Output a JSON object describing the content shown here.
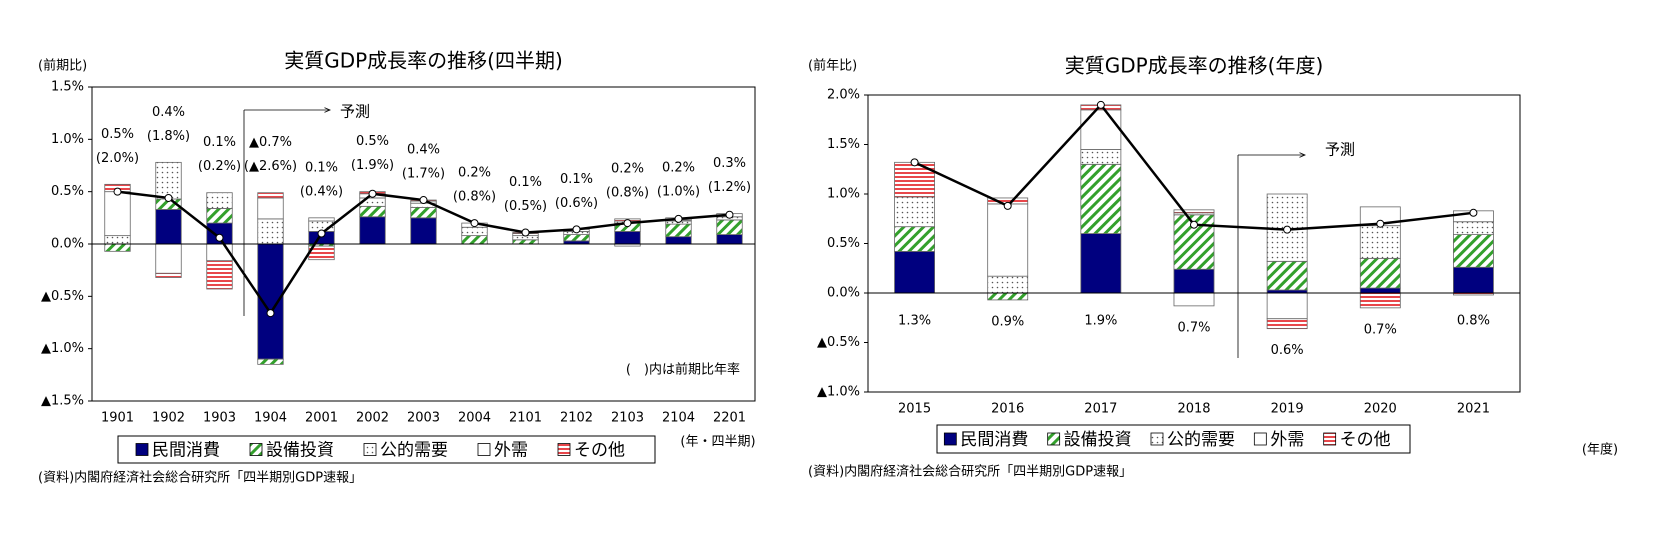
{
  "chart_data": [
    {
      "type": "bar",
      "title": "実質GDP成長率の推移(四半期)",
      "y_unit_label": "(前期比)",
      "x_unit_label": "(年・四半期)",
      "source": "(資料)内閣府経済社会総合研究所「四半期別GDP速報」",
      "note": "(　)内は前期比年率",
      "forecast_label": "予測",
      "categories": [
        "1901",
        "1902",
        "1903",
        "1904",
        "2001",
        "2002",
        "2003",
        "2004",
        "2101",
        "2102",
        "2103",
        "2104",
        "2201"
      ],
      "ylim": [
        -1.5,
        1.5
      ],
      "yticks": [
        {
          "value": -1.5,
          "label": "▲1.5%"
        },
        {
          "value": -1.0,
          "label": "▲1.0%"
        },
        {
          "value": -0.5,
          "label": "▲0.5%"
        },
        {
          "value": 0.0,
          "label": "0.0%"
        },
        {
          "value": 0.5,
          "label": "0.5%"
        },
        {
          "value": 1.0,
          "label": "1.0%"
        },
        {
          "value": 1.5,
          "label": "1.5%"
        }
      ],
      "series": [
        {
          "name": "民間消費",
          "color": "#00007f",
          "pattern": "solid",
          "values": [
            0.0,
            0.33,
            0.2,
            -1.1,
            0.12,
            0.26,
            0.25,
            0.0,
            0.0,
            0.03,
            0.12,
            0.07,
            0.09
          ]
        },
        {
          "name": "設備投資",
          "color": "#33a02c",
          "pattern": "hatch",
          "values": [
            -0.07,
            0.1,
            0.14,
            -0.05,
            -0.02,
            0.1,
            0.1,
            0.08,
            0.04,
            0.06,
            0.08,
            0.12,
            0.14
          ]
        },
        {
          "name": "公的需要",
          "color": "#555555",
          "pattern": "dots",
          "values": [
            0.08,
            0.35,
            0.15,
            0.24,
            0.1,
            0.08,
            0.04,
            0.08,
            0.04,
            0.03,
            0.02,
            0.03,
            0.03
          ]
        },
        {
          "name": "外需",
          "color": "#ffffff",
          "pattern": "none",
          "values": [
            0.42,
            -0.28,
            -0.16,
            0.2,
            0.03,
            0.04,
            0.02,
            0.04,
            0.02,
            0.02,
            -0.02,
            0.01,
            0.03
          ]
        },
        {
          "name": "その他",
          "color": "#e8474b",
          "pattern": "stripes",
          "values": [
            0.07,
            -0.04,
            -0.27,
            0.05,
            -0.13,
            0.02,
            0.01,
            0.0,
            0.01,
            0.0,
            0.02,
            0.02,
            0.0
          ]
        }
      ],
      "line": {
        "color": "#000000",
        "values": [
          0.5,
          0.44,
          0.06,
          -0.66,
          0.1,
          0.48,
          0.42,
          0.2,
          0.11,
          0.14,
          0.2,
          0.24,
          0.28
        ],
        "value_labels": [
          "0.5%",
          "0.4%",
          "0.1%",
          "▲0.7%",
          "0.1%",
          "0.5%",
          "0.4%",
          "0.2%",
          "0.1%",
          "0.1%",
          "0.2%",
          "0.2%",
          "0.3%"
        ]
      },
      "annualized_labels": [
        "(2.0%)",
        "(1.8%)",
        "(0.2%)",
        "(▲2.6%)",
        "(0.4%)",
        "(1.9%)",
        "(1.7%)",
        "(0.8%)",
        "(0.5%)",
        "(0.6%)",
        "(0.8%)",
        "(1.0%)",
        "(1.2%)"
      ]
    },
    {
      "type": "bar",
      "title": "実質GDP成長率の推移(年度)",
      "y_unit_label": "(前年比)",
      "x_unit_label": "(年度)",
      "source": "(資料)内閣府経済社会総合研究所「四半期別GDP速報」",
      "forecast_label": "予測",
      "categories": [
        "2015",
        "2016",
        "2017",
        "2018",
        "2019",
        "2020",
        "2021"
      ],
      "ylim": [
        -1.0,
        2.0
      ],
      "yticks": [
        {
          "value": -1.0,
          "label": "▲1.0%"
        },
        {
          "value": -0.5,
          "label": "▲0.5%"
        },
        {
          "value": 0.0,
          "label": "0.0%"
        },
        {
          "value": 0.5,
          "label": "0.5%"
        },
        {
          "value": 1.0,
          "label": "1.0%"
        },
        {
          "value": 1.5,
          "label": "1.5%"
        },
        {
          "value": 2.0,
          "label": "2.0%"
        }
      ],
      "series": [
        {
          "name": "民間消費",
          "color": "#00007f",
          "pattern": "solid",
          "values": [
            0.42,
            0.0,
            0.6,
            0.24,
            0.03,
            0.05,
            0.26
          ]
        },
        {
          "name": "設備投資",
          "color": "#33a02c",
          "pattern": "hatch",
          "values": [
            0.25,
            -0.07,
            0.7,
            0.55,
            0.29,
            0.3,
            0.33
          ]
        },
        {
          "name": "公的需要",
          "color": "#555555",
          "pattern": "dots",
          "values": [
            0.3,
            0.17,
            0.15,
            0.02,
            0.68,
            0.33,
            0.13
          ]
        },
        {
          "name": "外需",
          "color": "#ffffff",
          "pattern": "none",
          "values": [
            0.0,
            0.73,
            0.4,
            -0.13,
            -0.26,
            0.19,
            0.11
          ]
        },
        {
          "name": "その他",
          "color": "#e8474b",
          "pattern": "stripes",
          "values": [
            0.35,
            0.06,
            0.05,
            0.03,
            -0.1,
            -0.15,
            -0.02
          ]
        }
      ],
      "line": {
        "color": "#000000",
        "values": [
          1.32,
          0.88,
          1.9,
          0.69,
          0.64,
          0.7,
          0.81
        ],
        "value_labels": [
          "1.3%",
          "0.9%",
          "1.9%",
          "0.7%",
          "0.6%",
          "0.7%",
          "0.8%"
        ]
      }
    }
  ]
}
